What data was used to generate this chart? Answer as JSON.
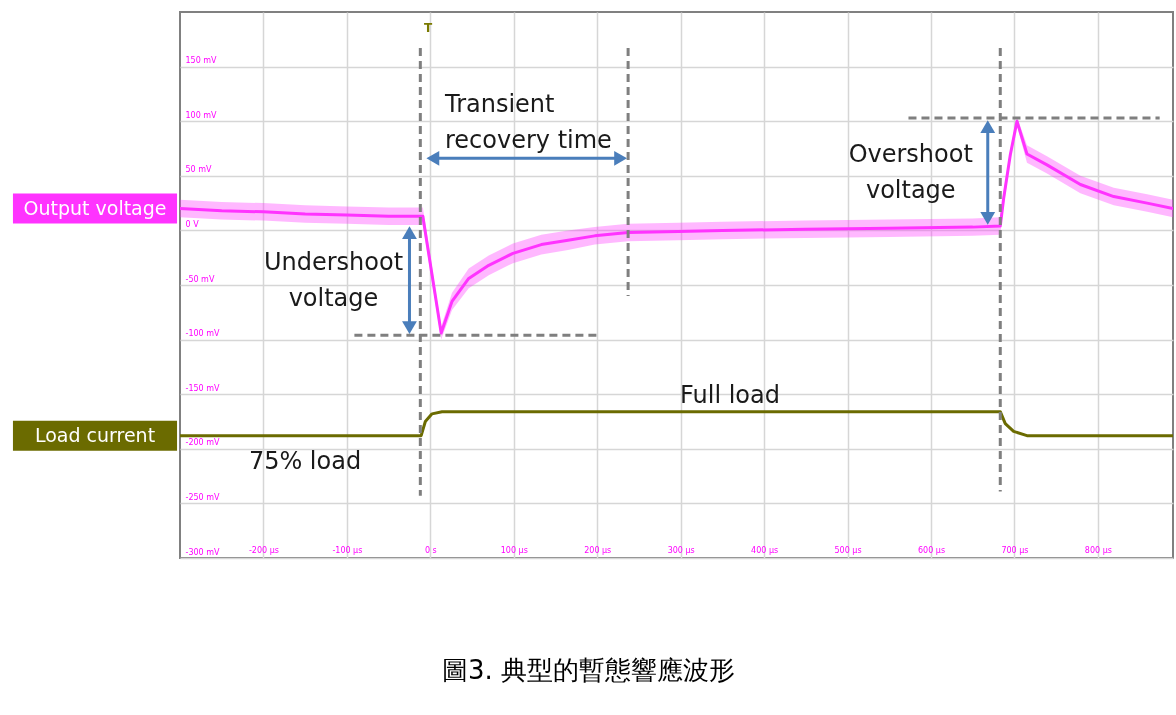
{
  "chart_data": {
    "type": "line",
    "title": "圖3. 典型的暫態響應波形",
    "xlim": [
      -300,
      890
    ],
    "xticks": [
      {
        "value": -200,
        "label": "-200 µs"
      },
      {
        "value": -100,
        "label": "-100 µs"
      },
      {
        "value": 0,
        "label": "0 s"
      },
      {
        "value": 100,
        "label": "100 µs"
      },
      {
        "value": 200,
        "label": "200 µs"
      },
      {
        "value": 300,
        "label": "300 µs"
      },
      {
        "value": 400,
        "label": "400 µs"
      },
      {
        "value": 500,
        "label": "500 µs"
      },
      {
        "value": 600,
        "label": "600 µs"
      },
      {
        "value": 700,
        "label": "700 µs"
      },
      {
        "value": 800,
        "label": "800 µs"
      }
    ],
    "ylim": [
      -300,
      200
    ],
    "yticks": [
      {
        "value": -300,
        "label": "-300 mV"
      },
      {
        "value": -250,
        "label": "-250 mV"
      },
      {
        "value": -200,
        "label": "-200 mV"
      },
      {
        "value": -150,
        "label": "-150 mV"
      },
      {
        "value": -100,
        "label": "-100 mV"
      },
      {
        "value": -50,
        "label": "-50 mV"
      },
      {
        "value": 0,
        "label": "0 V"
      },
      {
        "value": 50,
        "label": "50 mV"
      },
      {
        "value": 100,
        "label": "100 mV"
      },
      {
        "value": 150,
        "label": "150 mV"
      }
    ],
    "grid": true,
    "series": [
      {
        "name": "Output voltage",
        "color": "#ff33ff",
        "x": [
          -300,
          -250,
          -200,
          -150,
          -100,
          -50,
          -9,
          13,
          26,
          46,
          70,
          99,
          133,
          165,
          197,
          237,
          297,
          350,
          450,
          550,
          650,
          683,
          687,
          695,
          703,
          715,
          739,
          779,
          819,
          859,
          890
        ],
        "values": [
          20,
          18,
          17,
          15,
          14,
          13,
          13,
          -94,
          -65,
          -44,
          -32,
          -21,
          -13,
          -9,
          -5,
          -2,
          -1,
          0,
          1,
          2,
          3,
          4,
          29,
          69,
          100,
          70,
          60,
          42,
          31,
          25,
          20
        ],
        "lower": [
          12,
          10,
          9,
          7,
          6,
          5,
          5,
          -100,
          -73,
          -53,
          -41,
          -30,
          -22,
          -18,
          -13,
          -10,
          -9,
          -8,
          -7,
          -6,
          -5,
          -4,
          22,
          64,
          96,
          62,
          52,
          34,
          23,
          17,
          12
        ],
        "upper": [
          28,
          26,
          25,
          23,
          22,
          21,
          21,
          -88,
          -57,
          -35,
          -23,
          -12,
          -4,
          0,
          3,
          6,
          7,
          8,
          9,
          10,
          11,
          12,
          36,
          74,
          104,
          78,
          68,
          50,
          39,
          33,
          28
        ]
      },
      {
        "name": "Load current",
        "color": "#6b6b00",
        "x": [
          -300,
          -11,
          -6,
          2,
          14,
          300,
          683,
          689,
          699,
          715,
          890
        ],
        "values": [
          -188,
          -188,
          -175,
          -168,
          -166,
          -166,
          -166,
          -177,
          -184,
          -188,
          -188
        ]
      },
      {
        "color": "#7f7f7f",
        "line_style": "dashed",
        "x": [
          -12,
          -12
        ],
        "values": [
          167,
          -243
        ]
      },
      {
        "color": "#7f7f7f",
        "line_style": "dashed",
        "x": [
          237,
          237
        ],
        "values": [
          167,
          -60
        ]
      },
      {
        "color": "#7f7f7f",
        "line_style": "dashed",
        "x": [
          683,
          683
        ],
        "values": [
          167,
          -239
        ]
      },
      {
        "color": "#7f7f7f",
        "line_style": "dashed",
        "x": [
          -91,
          203
        ],
        "values": [
          -96,
          -96
        ]
      },
      {
        "color": "#7f7f7f",
        "line_style": "dashed",
        "x": [
          573,
          874
        ],
        "values": [
          103,
          103
        ]
      },
      {
        "color": "#4a7ebb",
        "marker": "triangle",
        "x": [
          3,
          228
        ],
        "values": [
          66,
          66
        ]
      },
      {
        "color": "#4a7ebb",
        "marker": "triangle",
        "x": [
          -25,
          -25
        ],
        "values": [
          -2,
          -89
        ]
      },
      {
        "color": "#4a7ebb",
        "marker": "triangle",
        "x": [
          668,
          668
        ],
        "values": [
          95,
          11
        ]
      }
    ],
    "annotations": [
      "T",
      "Transient\nrecovery time",
      {
        "text": "Overshoot\nvoltage",
        "x": 668,
        "y": 11
      },
      {
        "text": "Undershoot\nvoltage",
        "x": -25,
        "y": -89
      },
      "Full load",
      "75% load"
    ]
  }
}
